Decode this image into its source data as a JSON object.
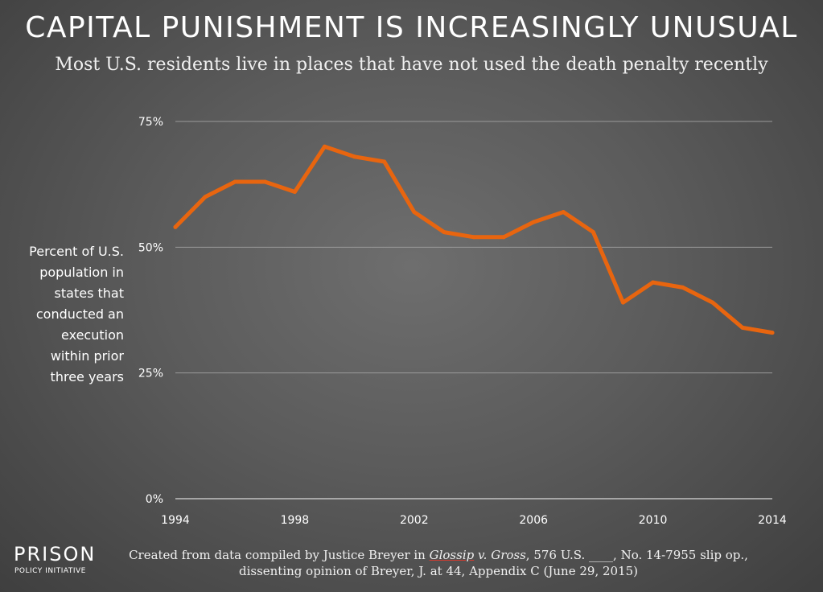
{
  "title": "CAPITAL PUNISHMENT IS INCREASINGLY UNUSUAL",
  "subtitle": "Most U.S. residents live in places that have not used the death penalty recently",
  "chart_data": {
    "type": "line",
    "title": "CAPITAL PUNISHMENT IS INCREASINGLY UNUSUAL",
    "ylabel": "Percent of U.S. population in states that conducted an execution within prior three years",
    "ylabel_lines": [
      "Percent of U.S.",
      "population in",
      "states that",
      "conducted an",
      "execution",
      "within prior",
      "three years"
    ],
    "xlabel": "",
    "x": [
      1994,
      1995,
      1996,
      1997,
      1998,
      1999,
      2000,
      2001,
      2002,
      2003,
      2004,
      2005,
      2006,
      2007,
      2008,
      2009,
      2010,
      2011,
      2012,
      2013,
      2014
    ],
    "values": [
      54,
      60,
      63,
      63,
      61,
      70,
      68,
      67,
      57,
      53,
      52,
      52,
      55,
      57,
      53,
      39,
      43,
      42,
      39,
      34,
      33
    ],
    "xlim": [
      1994,
      2014
    ],
    "ylim": [
      0,
      75
    ],
    "xticks": [
      "1994",
      "1998",
      "2002",
      "2006",
      "2010",
      "2014"
    ],
    "yticks": [
      "0%",
      "25%",
      "50%",
      "75%"
    ],
    "ytick_values": [
      0,
      25,
      50,
      75
    ],
    "grid": true,
    "line_color": "#e8650f"
  },
  "brand": {
    "name": "PRISON",
    "tagline": "POLICY INITIATIVE"
  },
  "source": {
    "line1_prefix": "Created from data compiled by Justice Breyer in ",
    "case_first": "Glossip",
    "case_rest": " v. Gross",
    "line1_suffix": ", 576 U.S. ____, No. 14-7955 slip op.,",
    "line2": "dissenting opinion of Breyer, J. at 44, Appendix C (June 29, 2015)"
  }
}
